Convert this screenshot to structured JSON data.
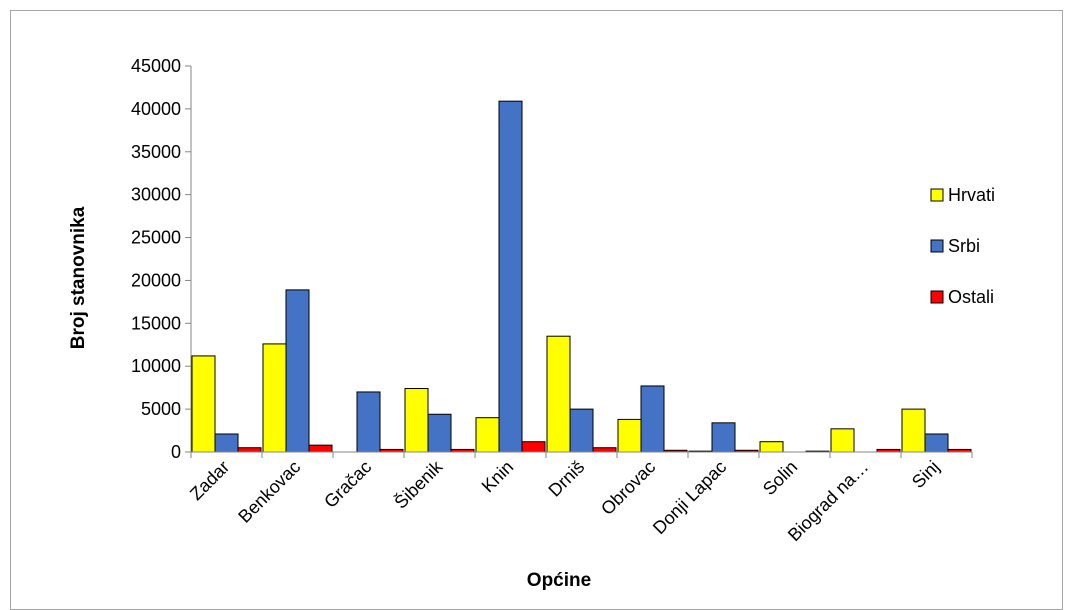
{
  "chart_data": {
    "type": "bar",
    "xlabel": "Općine",
    "ylabel": "Broj stanovnika",
    "ylim": [
      0,
      45000
    ],
    "yticks": [
      0,
      5000,
      10000,
      15000,
      20000,
      25000,
      30000,
      35000,
      40000,
      45000
    ],
    "grid": false,
    "legend_position": "right",
    "categories": [
      "Zadar",
      "Benkovac",
      "Gračac",
      "Šibenik",
      "Knin",
      "Drniš",
      "Obrovac",
      "Donji Lapac",
      "Solin",
      "Biograd na…",
      "Sinj"
    ],
    "series": [
      {
        "name": "Hrvati",
        "color": "#ffff00",
        "values": [
          11200,
          12600,
          0,
          7400,
          4000,
          13500,
          3800,
          100,
          1200,
          2700,
          5000
        ]
      },
      {
        "name": "Srbi",
        "color": "#4472c4",
        "values": [
          2100,
          18900,
          7000,
          4400,
          40900,
          5000,
          7700,
          3400,
          0,
          0,
          2100
        ]
      },
      {
        "name": "Ostali",
        "color": "#ff0000",
        "values": [
          500,
          800,
          300,
          300,
          1200,
          500,
          200,
          200,
          100,
          300,
          300
        ]
      }
    ]
  }
}
